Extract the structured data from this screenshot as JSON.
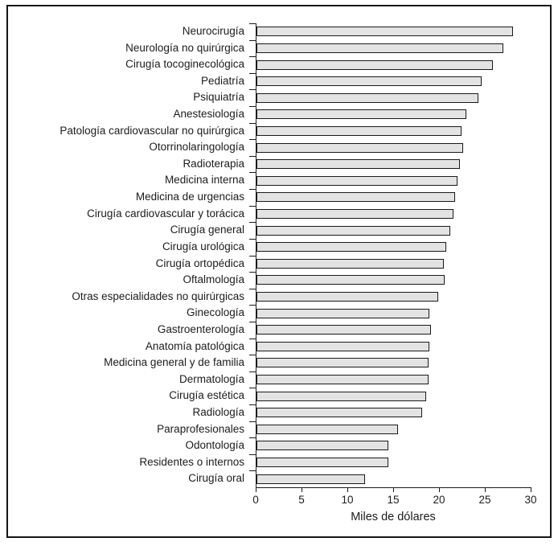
{
  "chart_data": {
    "type": "bar",
    "orientation": "horizontal",
    "title": "",
    "xlabel": "Miles de dólares",
    "xlim": [
      0,
      30
    ],
    "xticks": [
      0,
      5,
      10,
      15,
      20,
      25,
      30
    ],
    "grid": false,
    "legend": null,
    "bar_fill_color": "#e3e3e3",
    "bar_border_color": "#1a1a1a",
    "frame_border_color": "#141414",
    "categories": [
      "Neurocirugía",
      "Neurología no quirúrgica",
      "Cirugía tocoginecológica",
      "Pediatría",
      "Psiquiatría",
      "Anestesiología",
      "Patología cardiovascular no quirúrgica",
      "Otorrinolaringología",
      "Radioterapia",
      "Medicina interna",
      "Medicina de urgencias",
      "Cirugía cardiovascular y torácica",
      "Cirugía general",
      "Cirugía urológica",
      "Cirugía ortopédica",
      "Oftalmología",
      "Otras especialidades no quirúrgicas",
      "Ginecología",
      "Gastroenterología",
      "Anatomía patológica",
      "Medicina general y de familia",
      "Dermatología",
      "Cirugía estética",
      "Radiología",
      "Paraprofesionales",
      "Odontología",
      "Residentes o internos",
      "Cirugía oral"
    ],
    "values": [
      28.0,
      26.9,
      25.8,
      24.6,
      24.2,
      22.9,
      22.4,
      22.5,
      22.2,
      21.9,
      21.7,
      21.5,
      21.1,
      20.7,
      20.4,
      20.5,
      19.8,
      18.9,
      19.0,
      18.9,
      18.8,
      18.8,
      18.5,
      18.1,
      15.4,
      14.4,
      14.4,
      11.8
    ]
  }
}
